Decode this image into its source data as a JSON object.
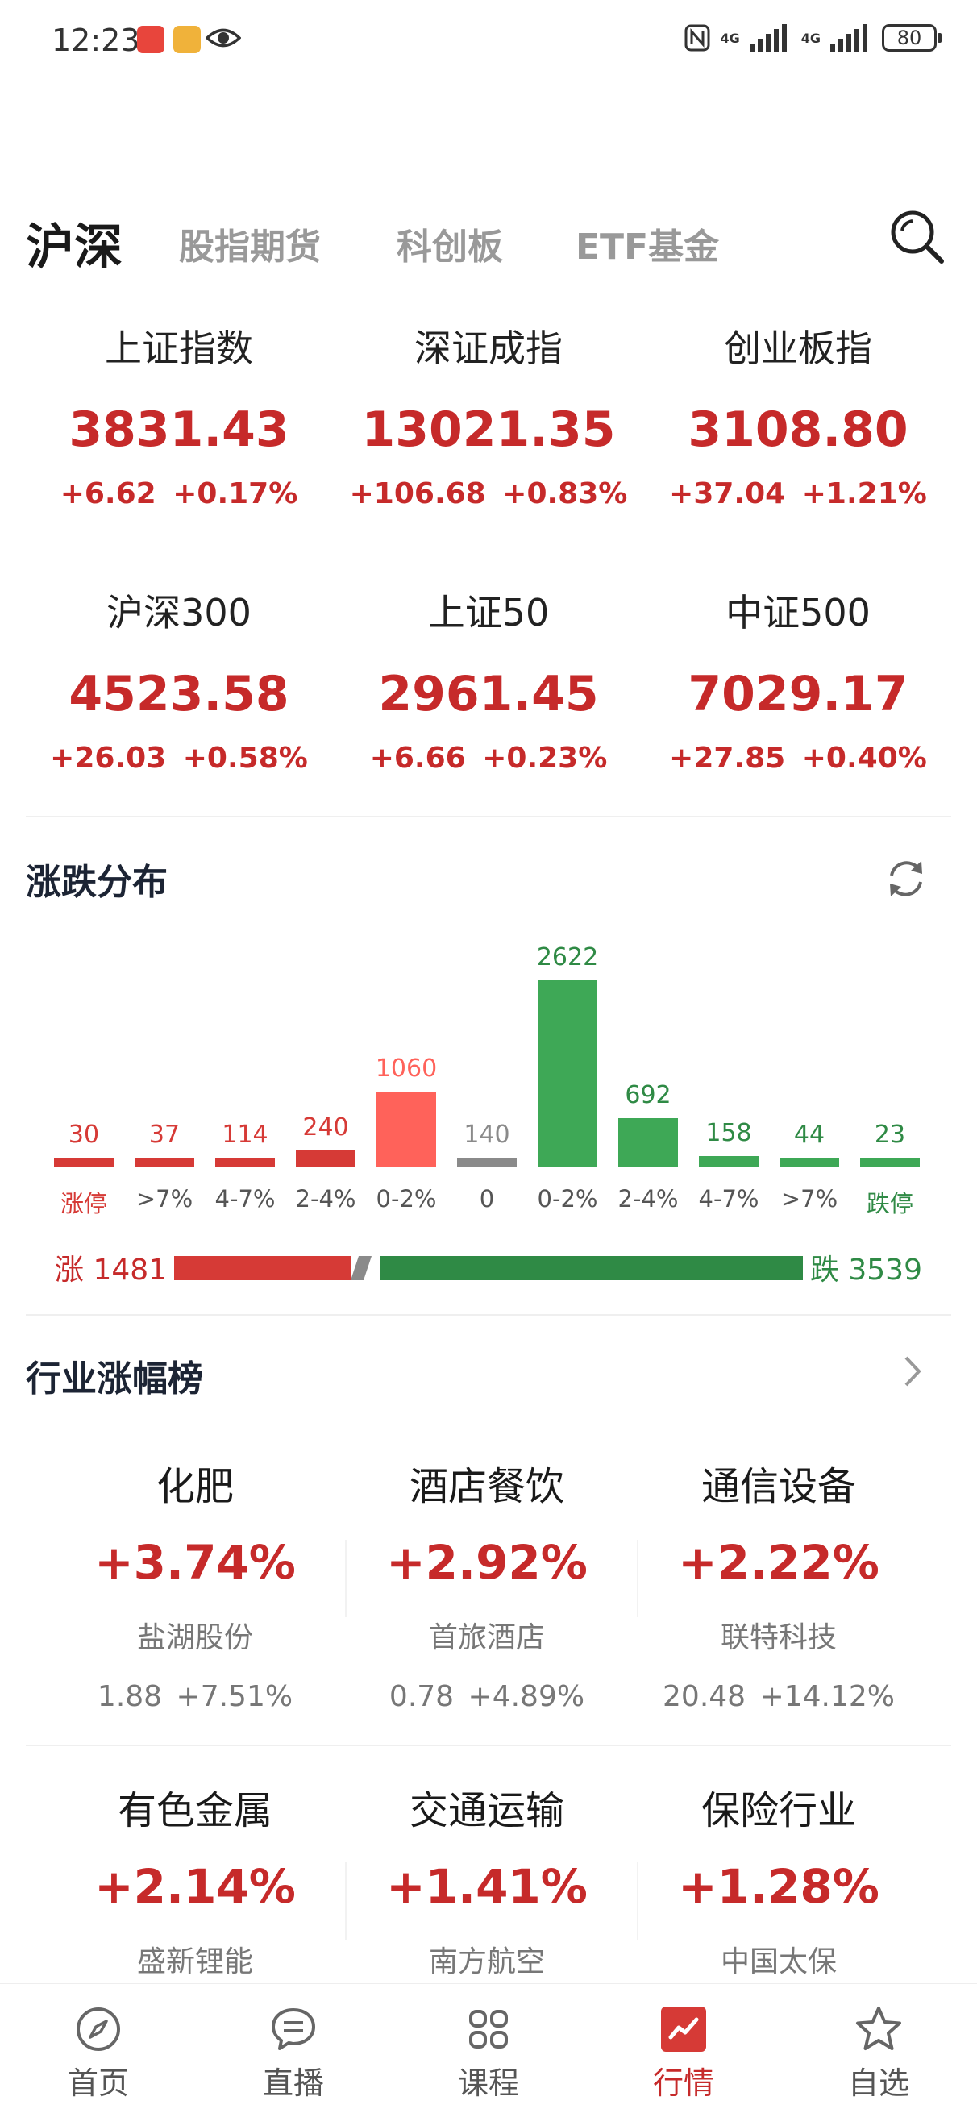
{
  "status_bar": {
    "time": "12:23",
    "network1": "4G",
    "network2": "4G",
    "battery": "80"
  },
  "tabs": [
    "沪深",
    "股指期货",
    "科创板",
    "ETF基金"
  ],
  "indices": [
    {
      "name": "上证指数",
      "value": "3831.43",
      "change": "+6.62",
      "pct": "+0.17%"
    },
    {
      "name": "深证成指",
      "value": "13021.35",
      "change": "+106.68",
      "pct": "+0.83%"
    },
    {
      "name": "创业板指",
      "value": "3108.80",
      "change": "+37.04",
      "pct": "+1.21%"
    },
    {
      "name": "沪深300",
      "value": "4523.58",
      "change": "+26.03",
      "pct": "+0.58%"
    },
    {
      "name": "上证50",
      "value": "2961.45",
      "change": "+6.66",
      "pct": "+0.23%"
    },
    {
      "name": "中证500",
      "value": "7029.17",
      "change": "+27.85",
      "pct": "+0.40%"
    }
  ],
  "distribution": {
    "title": "涨跌分布",
    "up_label": "涨",
    "up_count": "1481",
    "down_label": "跌",
    "down_count": "3539",
    "colors": {
      "up": "#d63a36",
      "up_light": "#ff625a",
      "flat": "#8a8a8a",
      "down": "#3ea856",
      "down_dark": "#2f8a45"
    }
  },
  "chart_data": {
    "type": "bar",
    "categories": [
      "涨停",
      ">7%",
      "4-7%",
      "2-4%",
      "0-2%",
      "0",
      "0-2%",
      "2-4%",
      "4-7%",
      ">7%",
      "跌停"
    ],
    "values": [
      30,
      37,
      114,
      240,
      1060,
      140,
      2622,
      692,
      158,
      44,
      23
    ],
    "labels": [
      "30",
      "37",
      "114",
      "240",
      "1060",
      "140",
      "2622",
      "692",
      "158",
      "44",
      "23"
    ],
    "title": "涨跌分布"
  },
  "industry": {
    "title": "行业涨幅榜",
    "items": [
      {
        "name": "化肥",
        "pct": "+3.74%",
        "stock": "盐湖股份",
        "price": "1.88",
        "stock_pct": "+7.51%"
      },
      {
        "name": "酒店餐饮",
        "pct": "+2.92%",
        "stock": "首旅酒店",
        "price": "0.78",
        "stock_pct": "+4.89%"
      },
      {
        "name": "通信设备",
        "pct": "+2.22%",
        "stock": "联特科技",
        "price": "20.48",
        "stock_pct": "+14.12%"
      },
      {
        "name": "有色金属",
        "pct": "+2.14%",
        "stock": "盛新锂能"
      },
      {
        "name": "交通运输",
        "pct": "+1.41%",
        "stock": "南方航空"
      },
      {
        "name": "保险行业",
        "pct": "+1.28%",
        "stock": "中国太保"
      }
    ]
  },
  "nav": [
    {
      "label": "首页",
      "icon": "compass-icon"
    },
    {
      "label": "直播",
      "icon": "chat-bubble-icon"
    },
    {
      "label": "课程",
      "icon": "grid-icon"
    },
    {
      "label": "行情",
      "icon": "market-chart-icon",
      "active": true
    },
    {
      "label": "自选",
      "icon": "star-icon"
    }
  ]
}
